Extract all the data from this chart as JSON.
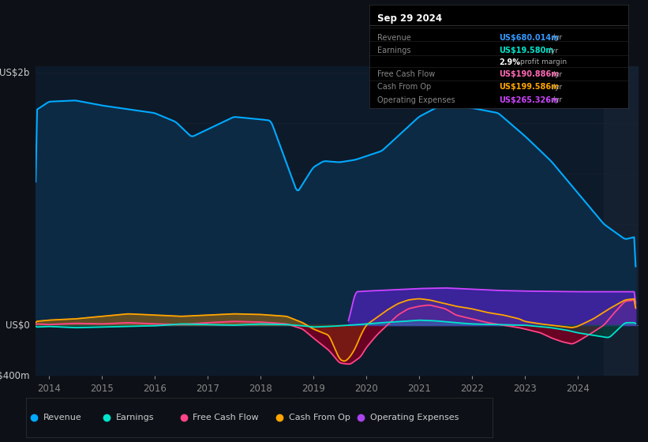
{
  "bg_color": "#0d1117",
  "plot_bg_color": "#0d1a2a",
  "y_label_top": "US$2b",
  "y_label_zero": "US$0",
  "y_label_bottom": "-US$400m",
  "tooltip_date": "Sep 29 2024",
  "tooltip_rows": [
    {
      "label": "Revenue",
      "value": "US$680.014m",
      "unit": "/yr",
      "color": "#3399ff"
    },
    {
      "label": "Earnings",
      "value": "US$19.580m",
      "unit": "/yr",
      "color": "#00e5cc"
    },
    {
      "label": "",
      "value": "2.9%",
      "unit": "profit margin",
      "color": "#ffffff"
    },
    {
      "label": "Free Cash Flow",
      "value": "US$190.886m",
      "unit": "/yr",
      "color": "#ff69b4"
    },
    {
      "label": "Cash From Op",
      "value": "US$199.586m",
      "unit": "/yr",
      "color": "#ffa500"
    },
    {
      "label": "Operating Expenses",
      "value": "US$265.326m",
      "unit": "/yr",
      "color": "#cc44ff"
    }
  ],
  "legend": [
    {
      "label": "Revenue",
      "color": "#00aaff"
    },
    {
      "label": "Earnings",
      "color": "#00e5cc"
    },
    {
      "label": "Free Cash Flow",
      "color": "#ff4488"
    },
    {
      "label": "Cash From Op",
      "color": "#ffa500"
    },
    {
      "label": "Operating Expenses",
      "color": "#aa44ee"
    }
  ],
  "revenue_line_color": "#00aaff",
  "revenue_fill_color": "#0d2a45",
  "earnings_line_color": "#00e5cc",
  "earnings_pos_fill": "#00e5cc",
  "earnings_neg_fill": "#005544",
  "fcf_line_color": "#ff4488",
  "fcf_neg_fill": "#7a0022",
  "fcf_pos_fill": "#ff4488",
  "cop_line_color": "#ffa500",
  "cop_pos_fill": "#c87800",
  "opex_line_color": "#cc44ff",
  "opex_fill_color": "#4422aa",
  "grid_color": "#162030",
  "zero_line_color": "#dddddd"
}
